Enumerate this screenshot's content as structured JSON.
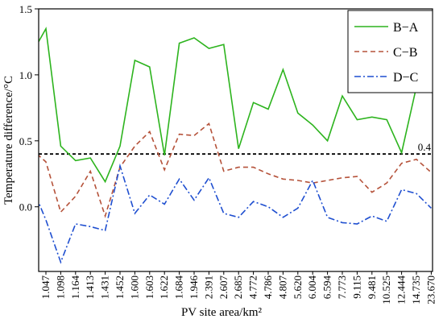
{
  "chart_data": {
    "type": "line",
    "xlabel": "PV site area/km²",
    "ylabel": "Temperature difference/°C",
    "categories": [
      null,
      "1.047",
      "1.098",
      "1.164",
      "1.413",
      "1.431",
      "1.452",
      "1.600",
      "1.603",
      "1.622",
      "1.684",
      "1.946",
      "2.391",
      "2.607",
      "2.685",
      "4.772",
      "4.786",
      "4.807",
      "5.620",
      "6.004",
      "6.594",
      "7.773",
      "9.115",
      "9.481",
      "10.525",
      "12.444",
      "14.735",
      "23.670"
    ],
    "series": [
      {
        "name": "B−A",
        "color": "#2db41e",
        "style": "solid",
        "values": [
          1.15,
          1.35,
          0.46,
          0.35,
          0.37,
          0.19,
          0.46,
          1.11,
          1.06,
          0.39,
          1.24,
          1.28,
          1.2,
          1.23,
          0.44,
          0.79,
          0.74,
          1.04,
          0.71,
          0.62,
          0.5,
          0.84,
          0.66,
          0.68,
          0.66,
          0.41,
          0.91,
          1.19
        ]
      },
      {
        "name": "C−B",
        "color": "#b5523a",
        "style": "dashed",
        "values": [
          0.44,
          0.34,
          -0.04,
          0.08,
          0.27,
          -0.07,
          0.3,
          0.46,
          0.57,
          0.28,
          0.55,
          0.54,
          0.63,
          0.27,
          0.3,
          0.3,
          0.25,
          0.21,
          0.2,
          0.18,
          0.2,
          0.22,
          0.23,
          0.11,
          0.18,
          0.33,
          0.36,
          0.26
        ]
      },
      {
        "name": "D−C",
        "color": "#1f4fd0",
        "style": "dashdot",
        "values": [
          0.17,
          -0.1,
          -0.42,
          -0.13,
          -0.15,
          -0.18,
          0.31,
          -0.05,
          0.09,
          0.02,
          0.21,
          0.05,
          0.22,
          -0.05,
          -0.08,
          0.04,
          0.0,
          -0.08,
          -0.01,
          0.2,
          -0.08,
          -0.12,
          -0.13,
          -0.07,
          -0.11,
          0.13,
          0.1,
          -0.01
        ]
      }
    ],
    "reference_line": 0.4,
    "ylim": [
      -0.49,
      1.5
    ],
    "yticks": [
      {
        "value": 0,
        "label": "0.0"
      },
      {
        "value": 0.5,
        "label": "0.5"
      },
      {
        "value": 1,
        "label": "1.0"
      },
      {
        "value": 1.5,
        "label": "1.5"
      }
    ],
    "legend": "upper right"
  }
}
